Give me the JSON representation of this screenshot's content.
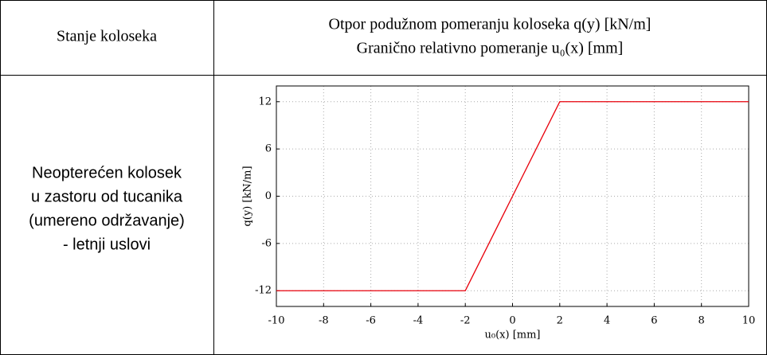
{
  "table": {
    "header": [
      "Stanje koloseka",
      [
        "Otpor podužnom pomeranju koloseka q(y) [kN/m]",
        "Granično relativno pomeranje u₀(x) [mm]"
      ]
    ],
    "rows": [
      [
        [
          "Neopterećen kolosek",
          "u zastoru od tucanika",
          "(umereno održavanje)",
          "- letnji uslovi"
        ]
      ]
    ]
  },
  "chart_data": {
    "type": "line",
    "xlabel": "u₀(x) [mm]",
    "ylabel": "q(y) [kN/m]",
    "x": [
      -10,
      -2,
      2,
      10
    ],
    "series": [
      {
        "color": "#e8000b",
        "values": [
          -12,
          -12,
          12,
          12
        ]
      }
    ],
    "xlim": [
      -10,
      10
    ],
    "xticks": [
      -10,
      -8,
      -6,
      -4,
      -2,
      0,
      2,
      4,
      6,
      8,
      10
    ],
    "ylim": [
      -14,
      14
    ],
    "yticks": [
      -12,
      -6,
      0,
      6,
      12
    ],
    "grid": true
  }
}
